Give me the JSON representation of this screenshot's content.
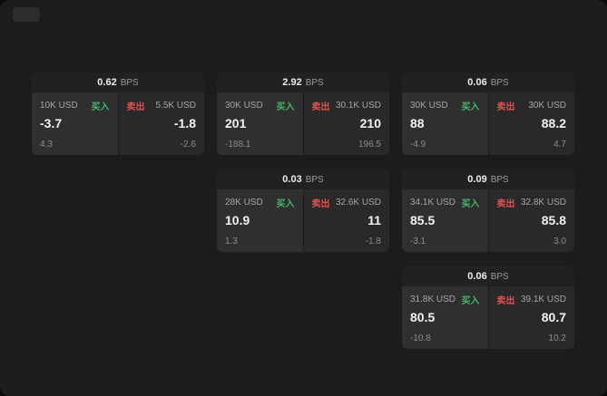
{
  "window": {
    "background": "#1c1c1c"
  },
  "colors": {
    "buy_green": "#46b66a",
    "sell_red": "#e05252",
    "card_bg": "#212121",
    "buy_panel_bg": "#2f2f2f",
    "sell_panel_bg": "#292929"
  },
  "icons": {
    "top_left_pill": "toolbar-pill-button"
  },
  "cards": [
    {
      "bps_value": "0.62",
      "bps_label": "BPS",
      "buy": {
        "amount": "10K USD",
        "action": "买入",
        "price": "-3.7",
        "sub": "4.3"
      },
      "sell": {
        "action": "卖出",
        "amount": "5.5K USD",
        "price": "-1.8",
        "sub": "-2.6"
      }
    },
    {
      "bps_value": "2.92",
      "bps_label": "BPS",
      "buy": {
        "amount": "30K USD",
        "action": "买入",
        "price": "201",
        "sub": "-188.1"
      },
      "sell": {
        "action": "卖出",
        "amount": "30.1K USD",
        "price": "210",
        "sub": "196.5"
      }
    },
    {
      "bps_value": "0.06",
      "bps_label": "BPS",
      "buy": {
        "amount": "30K USD",
        "action": "买入",
        "price": "88",
        "sub": "-4.9"
      },
      "sell": {
        "action": "卖出",
        "amount": "30K USD",
        "price": "88.2",
        "sub": "4.7"
      }
    },
    {
      "bps_value": "0.03",
      "bps_label": "BPS",
      "buy": {
        "amount": "28K USD",
        "action": "买入",
        "price": "10.9",
        "sub": "1.3"
      },
      "sell": {
        "action": "卖出",
        "amount": "32.6K USD",
        "price": "11",
        "sub": "-1.8"
      }
    },
    {
      "bps_value": "0.09",
      "bps_label": "BPS",
      "buy": {
        "amount": "34.1K USD",
        "action": "买入",
        "price": "85.5",
        "sub": "-3.1"
      },
      "sell": {
        "action": "卖出",
        "amount": "32.8K USD",
        "price": "85.8",
        "sub": "3.0"
      }
    },
    {
      "bps_value": "0.06",
      "bps_label": "BPS",
      "buy": {
        "amount": "31.8K USD",
        "action": "买入",
        "price": "80.5",
        "sub": "-10.8"
      },
      "sell": {
        "action": "卖出",
        "amount": "39.1K USD",
        "price": "80.7",
        "sub": "10.2"
      }
    }
  ]
}
